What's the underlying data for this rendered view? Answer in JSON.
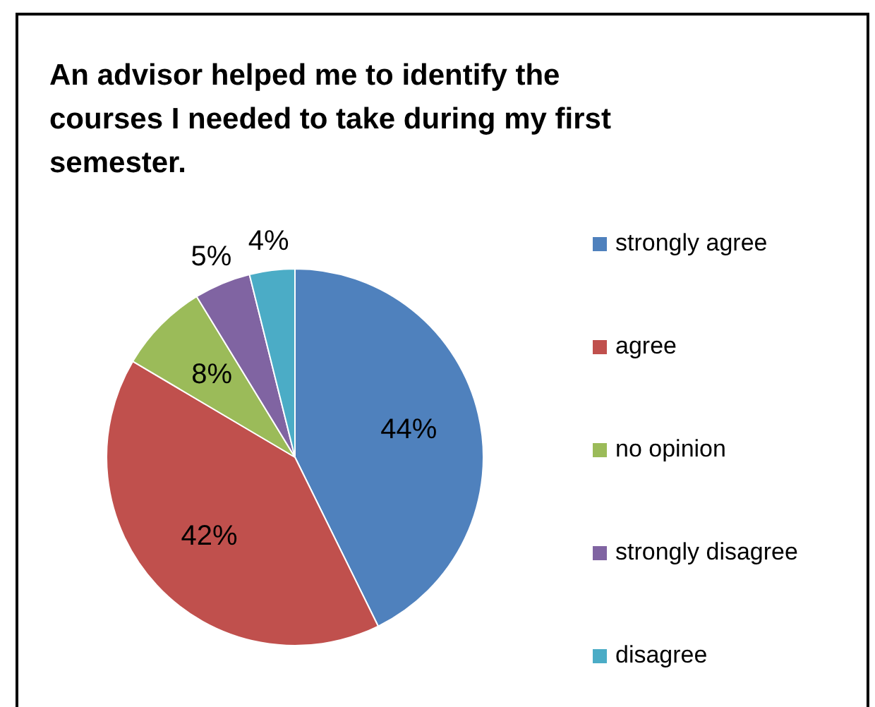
{
  "chart_data": {
    "type": "pie",
    "title": "An advisor helped me to identify the courses I needed to take during my first semester.",
    "categories": [
      "strongly agree",
      "agree",
      "no opinion",
      "strongly disagree",
      "disagree"
    ],
    "values": [
      44,
      42,
      8,
      5,
      4
    ],
    "colors": [
      "#4f81bd",
      "#c0504d",
      "#9bbb59",
      "#8064a2",
      "#4bacc6"
    ],
    "value_labels": [
      "44%",
      "42%",
      "8%",
      "5%",
      "4%"
    ],
    "legend": "right"
  }
}
